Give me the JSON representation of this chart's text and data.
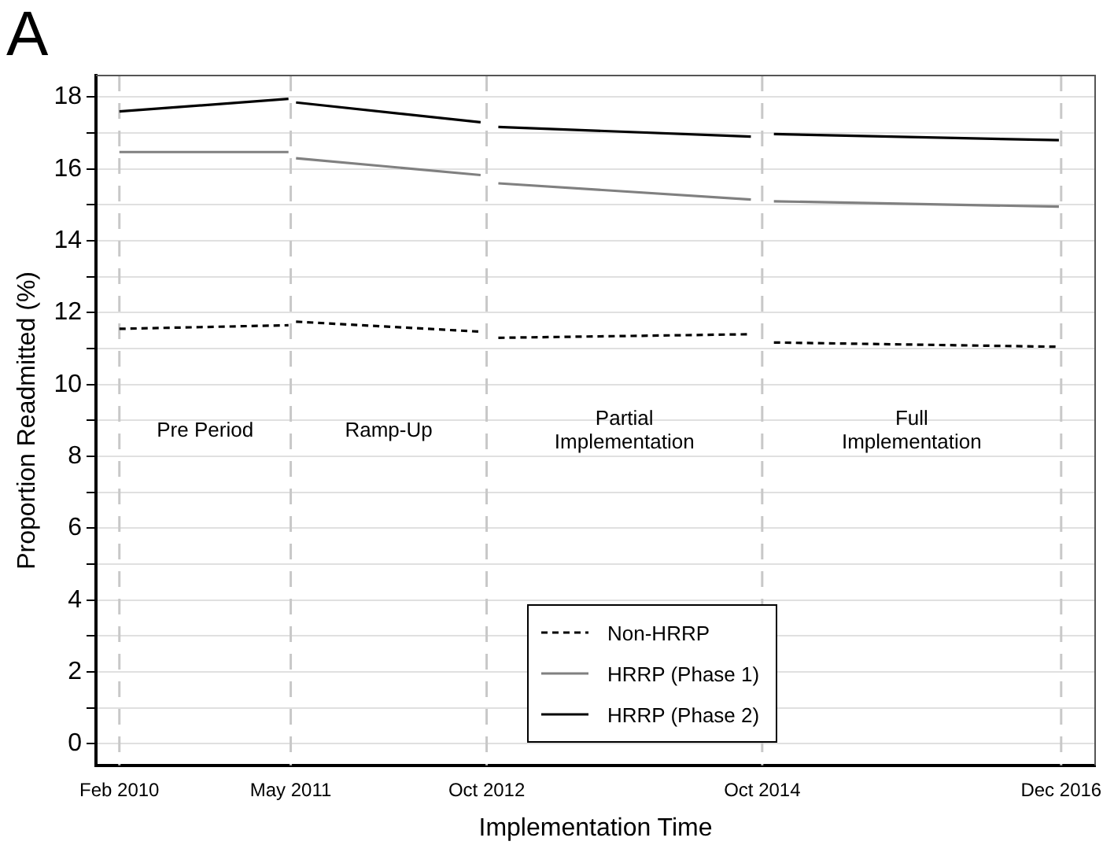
{
  "chart_data": {
    "type": "line",
    "title": "A",
    "xlabel": "Implementation Time",
    "ylabel": "Proportion Readmitted (%)",
    "xlim": [
      "2009-12",
      "2017-03"
    ],
    "xticks": [
      {
        "value": "2010-02",
        "label": "Feb 2010"
      },
      {
        "value": "2011-05",
        "label": "May 2011"
      },
      {
        "value": "2012-10",
        "label": "Oct 2012"
      },
      {
        "value": "2014-10",
        "label": "Oct 2014"
      },
      {
        "value": "2016-12",
        "label": "Dec 2016"
      }
    ],
    "ylim": [
      -0.6,
      18.6
    ],
    "yticks": [
      0,
      {
        "value": 1,
        "label": null
      },
      2,
      {
        "value": 3,
        "label": null
      },
      4,
      {
        "value": 5,
        "label": null
      },
      6,
      {
        "value": 7,
        "label": null
      },
      8,
      {
        "value": 9,
        "label": null
      },
      10,
      {
        "value": 11,
        "label": null
      },
      12,
      {
        "value": 13,
        "label": null
      },
      14,
      {
        "value": 15,
        "label": null
      },
      16,
      {
        "value": 17,
        "label": null
      },
      18
    ],
    "grid": "y",
    "legend": "bottom",
    "marker": "none",
    "series": [
      {
        "name": "Non-HRRP",
        "color": "#000000",
        "line_style": "dashed",
        "x": [
          "2010-02-01",
          "2011-04-25",
          "2011-05-15",
          "2012-09-15",
          "2012-11-01",
          "2014-09-01",
          "2014-11-01",
          "2016-11-25"
        ],
        "values": [
          11.55,
          11.65,
          11.75,
          11.47,
          11.3,
          11.4,
          11.17,
          11.05
        ]
      },
      {
        "name": "HRRP (Phase 1)",
        "color": "#808080",
        "line_style": "solid",
        "x": [
          "2010-02-01",
          "2011-04-25",
          "2011-05-15",
          "2012-09-15",
          "2012-11-01",
          "2014-09-01",
          "2014-11-01",
          "2016-11-25"
        ],
        "values": [
          16.47,
          16.47,
          16.3,
          15.83,
          15.6,
          15.15,
          15.1,
          14.95
        ]
      },
      {
        "name": "HRRP (Phase 2)",
        "color": "#000000",
        "line_style": "solid",
        "x": [
          "2010-02-01",
          "2011-04-25",
          "2011-05-15",
          "2012-09-15",
          "2012-11-01",
          "2014-09-01",
          "2014-11-01",
          "2016-11-25"
        ],
        "values": [
          17.6,
          17.95,
          17.85,
          17.3,
          17.17,
          16.9,
          16.97,
          16.8
        ]
      }
    ],
    "ref_lines": [
      {
        "axis": "x",
        "value": "2010-02",
        "color": "#c8c8c8",
        "line_style": "dashed"
      },
      {
        "axis": "x",
        "value": "2011-05",
        "color": "#c8c8c8",
        "line_style": "dashed"
      },
      {
        "axis": "x",
        "value": "2012-10",
        "color": "#c8c8c8",
        "line_style": "dashed"
      },
      {
        "axis": "x",
        "value": "2014-10",
        "color": "#c8c8c8",
        "line_style": "dashed"
      },
      {
        "axis": "x",
        "value": "2016-12",
        "color": "#c8c8c8",
        "line_style": "dashed"
      }
    ],
    "annotations": [
      "Pre Period",
      "Ramp-Up",
      "Partial Implementation",
      "Full Implementation"
    ]
  }
}
